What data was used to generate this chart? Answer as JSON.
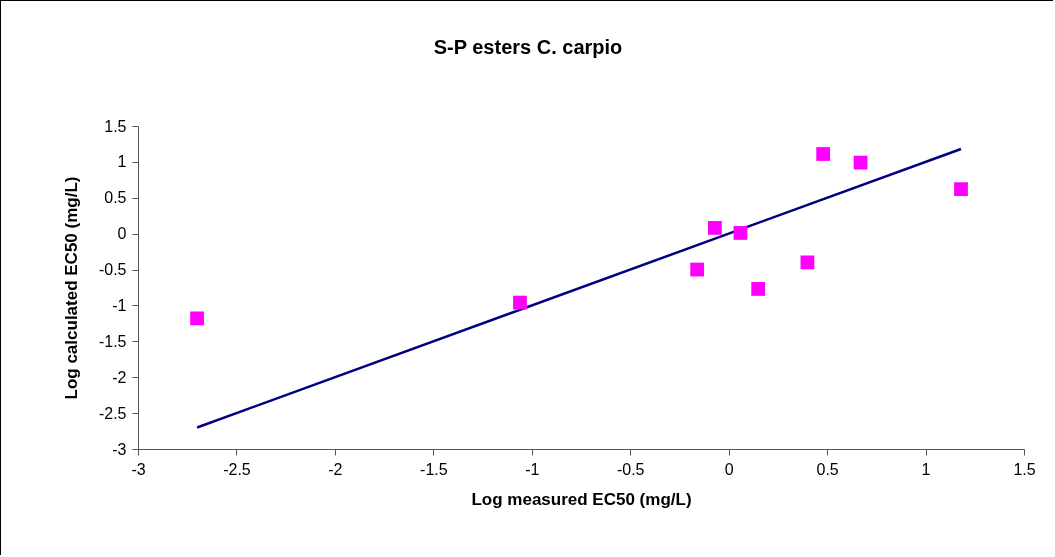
{
  "chart_data": {
    "type": "scatter",
    "title": "S-P esters C. carpio",
    "xlabel": "Log measured EC50 (mg/L)",
    "ylabel": "Log calculated EC50 (mg/L)",
    "xlim": [
      -3,
      1.5
    ],
    "xticks": [
      -3,
      -2.5,
      -2,
      -1.5,
      -1,
      -0.5,
      0,
      0.5,
      1,
      1.5
    ],
    "ylim": [
      -3,
      1.5
    ],
    "yticks": [
      -3,
      -2.5,
      -2,
      -1.5,
      -1,
      -0.5,
      0,
      0.5,
      1,
      1.5
    ],
    "grid": false,
    "series": [
      {
        "type": "scatter",
        "marker": "square",
        "color": "#ff00ff",
        "x": [
          -2.7,
          -1.06,
          -0.16,
          -0.07,
          0.06,
          0.15,
          0.4,
          0.48,
          0.67,
          1.18
        ],
        "values": [
          -1.18,
          -0.96,
          -0.5,
          0.08,
          0.01,
          -0.77,
          -0.4,
          1.11,
          0.99,
          0.62
        ]
      },
      {
        "type": "line",
        "color": "#000080",
        "x": [
          -2.7,
          1.18
        ],
        "values": [
          -2.7,
          1.18
        ]
      }
    ]
  }
}
